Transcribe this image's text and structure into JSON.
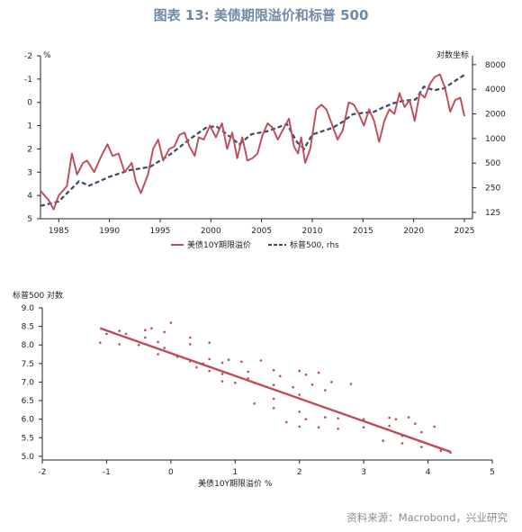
{
  "figure_title": "图表 13: 美债期限溢价和标普 500",
  "source_note": "资料来源：Macrobond，兴业研究",
  "colors": {
    "red": "#bf4a5a",
    "navy": "#3a4766",
    "title": "#6e8aa6",
    "axis": "#222222"
  },
  "chart_data": [
    {
      "type": "line",
      "left_axis_unit": "%",
      "right_axis_title": "对数坐标",
      "x_ticks": [
        1985,
        1990,
        1995,
        2000,
        2005,
        2010,
        2015,
        2020,
        2025
      ],
      "xlim": [
        1983.2,
        2025.8
      ],
      "left_ticks": [
        -2,
        -1,
        0,
        1,
        2,
        3,
        4,
        5
      ],
      "left_ylim_inverted": [
        -2,
        5
      ],
      "right_ticks": [
        125,
        250,
        500,
        1000,
        2000,
        4000,
        8000
      ],
      "right_scale": "log",
      "legend": [
        "美债10Y期限溢价",
        "标普500, rhs"
      ],
      "legend_position": "bottom",
      "series": [
        {
          "name": "美债10Y期限溢价",
          "axis": "left",
          "style": "solid",
          "x": [
            1983.2,
            1984,
            1984.5,
            1985,
            1985.8,
            1986.3,
            1986.8,
            1987.4,
            1987.8,
            1988.5,
            1989.2,
            1989.8,
            1990.3,
            1990.9,
            1991.5,
            1992.2,
            1992.6,
            1993.1,
            1993.8,
            1994.3,
            1994.8,
            1995.3,
            1995.9,
            1996.4,
            1996.9,
            1997.4,
            1997.9,
            1998.4,
            1998.8,
            1999.3,
            1999.9,
            2000.5,
            2001.1,
            2001.6,
            2002.1,
            2002.6,
            2003.1,
            2003.6,
            2004.1,
            2004.6,
            2005.1,
            2005.6,
            2006.1,
            2006.6,
            2007.2,
            2007.7,
            2008.2,
            2008.6,
            2008.9,
            2009.3,
            2009.8,
            2010.4,
            2010.9,
            2011.4,
            2011.9,
            2012.5,
            2013.0,
            2013.6,
            2014.1,
            2014.6,
            2015.1,
            2015.6,
            2016.1,
            2016.6,
            2017.1,
            2017.6,
            2018.1,
            2018.6,
            2019.1,
            2019.6,
            2020.1,
            2020.6,
            2021.1,
            2021.6,
            2022.1,
            2022.6,
            2023.1,
            2023.6,
            2024.1,
            2024.6,
            2025.0
          ],
          "y": [
            3.8,
            4.2,
            4.6,
            4.0,
            3.6,
            2.2,
            3.1,
            2.6,
            2.5,
            3.0,
            2.3,
            1.8,
            2.3,
            2.2,
            3.0,
            2.6,
            3.4,
            3.9,
            3.1,
            2.0,
            1.6,
            2.5,
            2.0,
            1.9,
            1.4,
            1.3,
            1.9,
            2.3,
            1.5,
            1.6,
            1.0,
            1.5,
            0.9,
            2.0,
            1.3,
            2.4,
            1.5,
            2.5,
            2.4,
            2.2,
            1.4,
            0.9,
            1.1,
            1.6,
            1.1,
            0.7,
            1.9,
            2.2,
            1.5,
            2.6,
            2.0,
            0.3,
            0.1,
            0.3,
            0.9,
            1.6,
            1.2,
            0.0,
            0.1,
            0.5,
            1.0,
            0.3,
            0.8,
            1.7,
            0.8,
            0.3,
            0.5,
            -0.4,
            0.2,
            -0.1,
            0.8,
            -0.4,
            -0.2,
            -0.8,
            -1.1,
            -1.2,
            -0.6,
            0.4,
            -0.1,
            -0.2,
            0.6
          ]
        },
        {
          "name": "标普500, rhs",
          "axis": "right",
          "style": "dashed",
          "x": [
            1983.2,
            1985,
            1987,
            1988,
            1990,
            1992,
            1994,
            1996,
            1998,
            1999.5,
            2000.5,
            2001.5,
            2002.8,
            2004,
            2005.5,
            2007.5,
            2008.5,
            2009.2,
            2010,
            2012,
            2013,
            2014,
            2015,
            2016,
            2017,
            2018,
            2019,
            2020.2,
            2021,
            2022,
            2023,
            2024,
            2025
          ],
          "y": [
            150,
            170,
            300,
            265,
            340,
            410,
            450,
            640,
            1000,
            1350,
            1420,
            1150,
            850,
            1130,
            1220,
            1500,
            900,
            750,
            1120,
            1350,
            1600,
            1980,
            2060,
            2100,
            2400,
            2700,
            2900,
            3000,
            4300,
            3900,
            4100,
            5000,
            6000
          ]
        }
      ]
    },
    {
      "type": "scatter",
      "xlabel": "美债10Y期限溢价 %",
      "ylabel": "标普500 对数",
      "xlim": [
        -2,
        5
      ],
      "ylim": [
        4.9,
        9.0
      ],
      "x_ticks": [
        -2,
        -1,
        0,
        1,
        2,
        3,
        4,
        5
      ],
      "y_ticks": [
        5.0,
        5.5,
        6.0,
        6.5,
        7.0,
        7.5,
        8.0,
        8.5,
        9.0
      ],
      "trend_line": {
        "x": [
          -1.1,
          4.35
        ],
        "y": [
          8.45,
          5.12
        ]
      },
      "series": [
        {
          "name": "",
          "x": [
            4.35,
            4.2,
            3.9,
            3.6,
            3.3,
            3.6,
            3.9,
            4.1,
            3.8,
            3.4,
            3.0,
            2.6,
            2.3,
            2.0,
            1.8,
            2.1,
            2.6,
            3.0,
            3.4,
            3.7,
            3.5,
            3.0,
            2.4,
            2.0,
            1.6,
            1.3,
            1.6,
            2.0,
            2.4,
            2.8,
            2.5,
            2.2,
            1.9,
            1.6,
            1.3,
            1.0,
            0.8,
            1.2,
            1.7,
            2.1,
            2.3,
            2.0,
            1.6,
            1.2,
            0.8,
            0.6,
            0.4,
            0.5,
            0.8,
            1.1,
            1.4,
            0.9,
            0.6,
            0.3,
            0.1,
            -0.2,
            -0.1,
            0.3,
            0.6,
            0.3,
            -0.1,
            -0.4,
            -0.8,
            -1.0,
            -1.1,
            -0.8,
            -0.5,
            -0.2,
            -0.4,
            -0.7,
            -0.3,
            0.0
          ],
          "y": [
            5.1,
            5.15,
            5.25,
            5.35,
            5.42,
            5.55,
            5.65,
            5.8,
            5.88,
            5.82,
            5.78,
            5.74,
            5.78,
            5.8,
            5.92,
            6.0,
            6.02,
            6.0,
            6.04,
            6.05,
            6.0,
            5.96,
            6.05,
            6.2,
            6.3,
            6.42,
            6.55,
            6.66,
            6.78,
            6.95,
            7.0,
            6.93,
            6.86,
            6.92,
            6.98,
            6.98,
            7.02,
            7.1,
            7.16,
            7.2,
            7.25,
            7.3,
            7.32,
            7.28,
            7.22,
            7.3,
            7.4,
            7.5,
            7.52,
            7.55,
            7.58,
            7.6,
            7.62,
            7.56,
            7.68,
            7.75,
            7.92,
            8.02,
            8.06,
            8.2,
            8.35,
            8.4,
            8.38,
            8.3,
            8.06,
            8.02,
            8.0,
            8.08,
            8.2,
            8.3,
            8.45,
            8.6
          ]
        }
      ]
    }
  ]
}
